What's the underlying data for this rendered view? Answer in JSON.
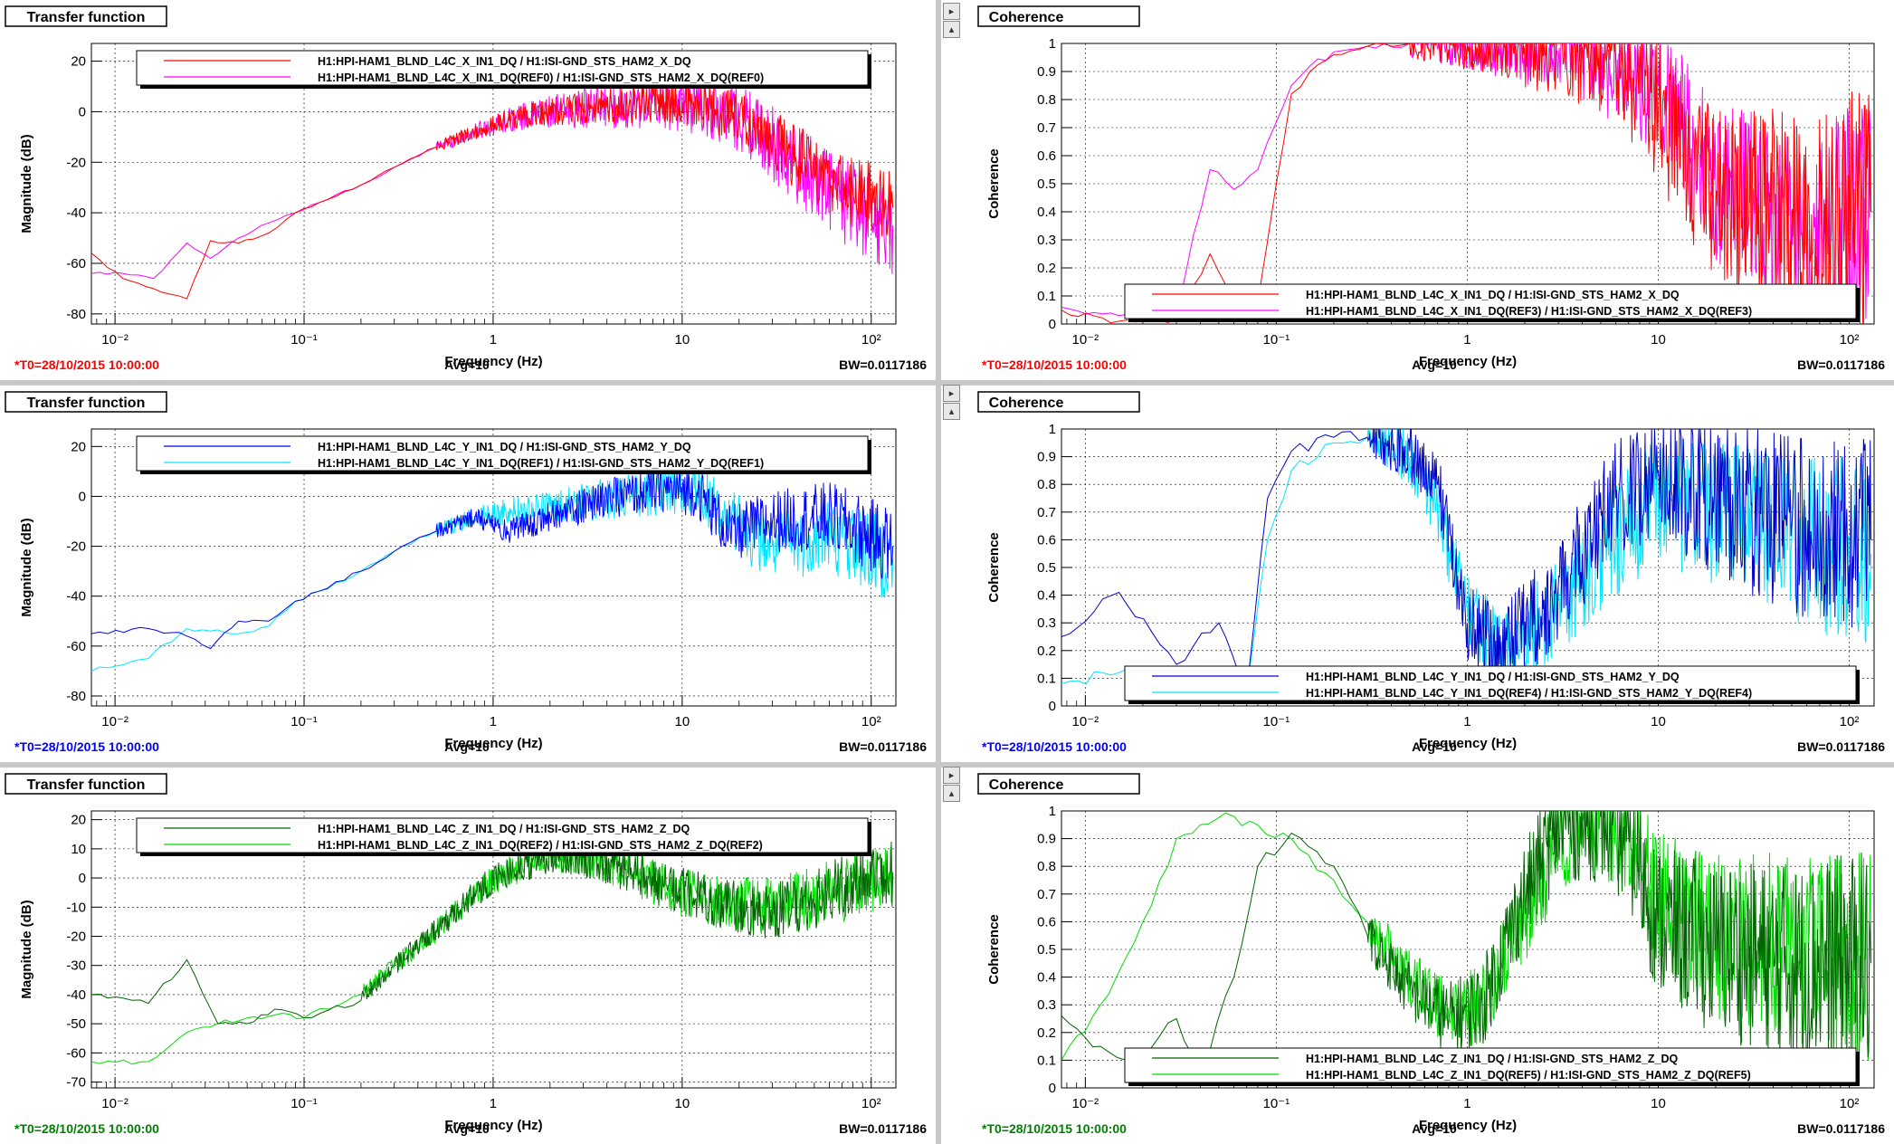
{
  "window": {
    "background": "#ffffff",
    "separator_color": "#c8c8c8"
  },
  "colors": {
    "red": "#ff0000",
    "magenta": "#ff00ff",
    "blue": "#0000ff",
    "darkblue": "#0000cc",
    "cyan": "#00e5ff",
    "darkgreen": "#006400",
    "lightgreen": "#00dd00",
    "redtext": "#ff0000",
    "bluetext": "#0000ff",
    "greentext": "#008000"
  },
  "controls": {
    "right_arrow": "▸",
    "up_arrow": "▴"
  },
  "chart_data": [
    {
      "id": "tf-x",
      "type": "line",
      "title": "Transfer function",
      "xlabel": "Frequency (Hz)",
      "ylabel": "Magnitude (dB)",
      "xscale": "log",
      "xlim": [
        0.0075,
        135
      ],
      "ylim": [
        -84,
        27
      ],
      "yticks": [
        -80,
        -60,
        -40,
        -20,
        0,
        20
      ],
      "xticks": [
        {
          "v": 0.01,
          "l": "10⁻²"
        },
        {
          "v": 0.1,
          "l": "10⁻¹"
        },
        {
          "v": 1,
          "l": "1"
        },
        {
          "v": 10,
          "l": "10"
        },
        {
          "v": 100,
          "l": "10²"
        }
      ],
      "grid": true,
      "legend_position": "top",
      "footer": {
        "left": "*T0=28/10/2015 10:00:00",
        "center": "Avg=10",
        "right": "BW=0.0117186",
        "left_color": "#ff0000"
      },
      "series": [
        {
          "name": "H1:HPI-HAM1_BLND_L4C_X_IN1_DQ(REF0) / H1:ISI-GND_STS_HAM2_X_DQ(REF0)",
          "color": "#ff00ff",
          "x": [
            0.0075,
            0.011,
            0.016,
            0.024,
            0.032,
            0.045,
            0.065,
            0.09,
            0.12,
            0.2,
            0.3,
            0.5,
            0.8,
            1.2,
            2,
            4,
            8,
            12,
            20,
            40,
            80,
            130
          ],
          "y": [
            -64,
            -64,
            -66,
            -52,
            -58,
            -50,
            -44,
            -40,
            -36,
            -29,
            -22,
            -14,
            -8,
            -3,
            0,
            2,
            4,
            3,
            -2,
            -20,
            -38,
            -45
          ],
          "noise_from": 11,
          "noise_amp": [
            2,
            20
          ]
        },
        {
          "name": "H1:HPI-HAM1_BLND_L4C_X_IN1_DQ / H1:ISI-GND_STS_HAM2_X_DQ",
          "color": "#ff0000",
          "x": [
            0.0075,
            0.011,
            0.016,
            0.024,
            0.032,
            0.045,
            0.065,
            0.09,
            0.12,
            0.2,
            0.3,
            0.5,
            0.8,
            1.2,
            2,
            4,
            8,
            12,
            20,
            40,
            80,
            130
          ],
          "y": [
            -56,
            -66,
            -70,
            -74,
            -51,
            -52,
            -48,
            -40,
            -36,
            -29,
            -22,
            -14,
            -8,
            -3,
            0,
            2,
            4,
            3,
            -2,
            -18,
            -32,
            -38
          ],
          "noise_from": 11,
          "noise_amp": [
            2,
            16
          ]
        }
      ]
    },
    {
      "id": "coh-x",
      "type": "line",
      "title": "Coherence",
      "xlabel": "Frequency (Hz)",
      "ylabel": "Coherence",
      "xscale": "log",
      "xlim": [
        0.0075,
        135
      ],
      "ylim": [
        0,
        1
      ],
      "yticks": [
        0,
        0.1,
        0.2,
        0.3,
        0.4,
        0.5,
        0.6,
        0.7,
        0.8,
        0.9,
        1
      ],
      "xticks": [
        {
          "v": 0.01,
          "l": "10⁻²"
        },
        {
          "v": 0.1,
          "l": "10⁻¹"
        },
        {
          "v": 1,
          "l": "1"
        },
        {
          "v": 10,
          "l": "10"
        },
        {
          "v": 100,
          "l": "10²"
        }
      ],
      "grid": true,
      "legend_position": "bottom",
      "footer": {
        "left": "*T0=28/10/2015 10:00:00",
        "center": "Avg=10",
        "right": "BW=0.0117186",
        "left_color": "#ff0000"
      },
      "series": [
        {
          "name": "H1:HPI-HAM1_BLND_L4C_X_IN1_DQ(REF3) / H1:ISI-GND_STS_HAM2_X_DQ(REF3)",
          "color": "#ff00ff",
          "x": [
            0.0075,
            0.015,
            0.03,
            0.045,
            0.06,
            0.08,
            0.1,
            0.12,
            0.15,
            0.2,
            0.3,
            0.5,
            1,
            2,
            4,
            6,
            10,
            20,
            50,
            130
          ],
          "y": [
            0.06,
            0.03,
            0.05,
            0.55,
            0.48,
            0.55,
            0.72,
            0.85,
            0.92,
            0.97,
            0.99,
            1.0,
            1.0,
            0.99,
            0.98,
            0.9,
            0.85,
            0.5,
            0.4,
            0.4
          ],
          "noise_from": 11,
          "noise_amp": [
            0.05,
            0.4
          ]
        },
        {
          "name": "H1:HPI-HAM1_BLND_L4C_X_IN1_DQ / H1:ISI-GND_STS_HAM2_X_DQ",
          "color": "#ff0000",
          "x": [
            0.0075,
            0.015,
            0.03,
            0.045,
            0.06,
            0.08,
            0.1,
            0.12,
            0.15,
            0.2,
            0.3,
            0.5,
            1,
            2,
            4,
            6,
            10,
            20,
            50,
            130
          ],
          "y": [
            0.05,
            0.01,
            0.02,
            0.25,
            0.1,
            0.08,
            0.5,
            0.82,
            0.9,
            0.96,
            0.99,
            1.0,
            1.0,
            0.99,
            0.98,
            0.95,
            0.75,
            0.45,
            0.4,
            0.4
          ],
          "noise_from": 11,
          "noise_amp": [
            0.05,
            0.45
          ]
        }
      ]
    },
    {
      "id": "tf-y",
      "type": "line",
      "title": "Transfer function",
      "xlabel": "Frequency (Hz)",
      "ylabel": "Magnitude (dB)",
      "xscale": "log",
      "xlim": [
        0.0075,
        135
      ],
      "ylim": [
        -84,
        27
      ],
      "yticks": [
        -80,
        -60,
        -40,
        -20,
        0,
        20
      ],
      "xticks": [
        {
          "v": 0.01,
          "l": "10⁻²"
        },
        {
          "v": 0.1,
          "l": "10⁻¹"
        },
        {
          "v": 1,
          "l": "1"
        },
        {
          "v": 10,
          "l": "10"
        },
        {
          "v": 100,
          "l": "10²"
        }
      ],
      "grid": true,
      "legend_position": "top",
      "footer": {
        "left": "*T0=28/10/2015 10:00:00",
        "center": "Avg=10",
        "right": "BW=0.0117186",
        "left_color": "#0000ff"
      },
      "series": [
        {
          "name": "H1:HPI-HAM1_BLND_L4C_Y_IN1_DQ(REF1) / H1:ISI-GND_STS_HAM2_Y_DQ(REF1)",
          "color": "#00e5ff",
          "x": [
            0.0075,
            0.015,
            0.024,
            0.032,
            0.045,
            0.065,
            0.09,
            0.12,
            0.2,
            0.3,
            0.5,
            0.8,
            1.2,
            2,
            4,
            8,
            12,
            18,
            30,
            60,
            130
          ],
          "y": [
            -70,
            -65,
            -53,
            -54,
            -55,
            -52,
            -42,
            -38,
            -30,
            -22,
            -14,
            -8,
            -6,
            -4,
            -1,
            3,
            3,
            -10,
            -20,
            -15,
            -25
          ],
          "noise_from": 10,
          "noise_amp": [
            3,
            18
          ]
        },
        {
          "name": "H1:HPI-HAM1_BLND_L4C_Y_IN1_DQ / H1:ISI-GND_STS_HAM2_Y_DQ",
          "color": "#0000ff",
          "x": [
            0.0075,
            0.015,
            0.024,
            0.032,
            0.045,
            0.065,
            0.09,
            0.12,
            0.2,
            0.3,
            0.5,
            0.8,
            1.2,
            2,
            4,
            8,
            12,
            18,
            30,
            60,
            130
          ],
          "y": [
            -55,
            -53,
            -56,
            -61,
            -50,
            -50,
            -42,
            -38,
            -30,
            -22,
            -14,
            -8,
            -14,
            -8,
            -1,
            3,
            2,
            -15,
            -10,
            -8,
            -20
          ],
          "noise_from": 10,
          "noise_amp": [
            3,
            16
          ]
        }
      ]
    },
    {
      "id": "coh-y",
      "type": "line",
      "title": "Coherence",
      "xlabel": "Frequency (Hz)",
      "ylabel": "Coherence",
      "xscale": "log",
      "xlim": [
        0.0075,
        135
      ],
      "ylim": [
        0,
        1
      ],
      "yticks": [
        0,
        0.1,
        0.2,
        0.3,
        0.4,
        0.5,
        0.6,
        0.7,
        0.8,
        0.9,
        1
      ],
      "xticks": [
        {
          "v": 0.01,
          "l": "10⁻²"
        },
        {
          "v": 0.1,
          "l": "10⁻¹"
        },
        {
          "v": 1,
          "l": "1"
        },
        {
          "v": 10,
          "l": "10"
        },
        {
          "v": 100,
          "l": "10²"
        }
      ],
      "grid": true,
      "legend_position": "bottom",
      "footer": {
        "left": "*T0=28/10/2015 10:00:00",
        "center": "Avg=10",
        "right": "BW=0.0117186",
        "left_color": "#0000ff"
      },
      "series": [
        {
          "name": "H1:HPI-HAM1_BLND_L4C_Y_IN1_DQ(REF4) / H1:ISI-GND_STS_HAM2_Y_DQ(REF4)",
          "color": "#00e5ff",
          "x": [
            0.0075,
            0.015,
            0.03,
            0.05,
            0.07,
            0.09,
            0.12,
            0.2,
            0.3,
            0.5,
            0.7,
            1,
            1.5,
            2.5,
            4,
            6,
            10,
            20,
            50,
            130
          ],
          "y": [
            0.08,
            0.12,
            0.06,
            0.1,
            0.05,
            0.6,
            0.85,
            0.95,
            0.97,
            0.9,
            0.7,
            0.35,
            0.2,
            0.3,
            0.45,
            0.6,
            0.75,
            0.7,
            0.6,
            0.55
          ],
          "noise_from": 8,
          "noise_amp": [
            0.08,
            0.35
          ]
        },
        {
          "name": "H1:HPI-HAM1_BLND_L4C_Y_IN1_DQ / H1:ISI-GND_STS_HAM2_Y_DQ",
          "color": "#0000cc",
          "x": [
            0.0075,
            0.015,
            0.03,
            0.05,
            0.07,
            0.09,
            0.12,
            0.2,
            0.3,
            0.5,
            0.7,
            1,
            1.5,
            2.5,
            4,
            6,
            10,
            20,
            50,
            130
          ],
          "y": [
            0.25,
            0.41,
            0.15,
            0.3,
            0.05,
            0.75,
            0.92,
            0.97,
            0.97,
            0.92,
            0.8,
            0.3,
            0.2,
            0.35,
            0.55,
            0.75,
            0.85,
            0.75,
            0.65,
            0.6
          ],
          "noise_from": 8,
          "noise_amp": [
            0.08,
            0.38
          ]
        }
      ]
    },
    {
      "id": "tf-z",
      "type": "line",
      "title": "Transfer function",
      "xlabel": "Frequency (Hz)",
      "ylabel": "Magnitude (dB)",
      "xscale": "log",
      "xlim": [
        0.0075,
        135
      ],
      "ylim": [
        -72,
        23
      ],
      "yticks": [
        -70,
        -60,
        -50,
        -40,
        -30,
        -20,
        -10,
        0,
        10,
        20
      ],
      "xticks": [
        {
          "v": 0.01,
          "l": "10⁻²"
        },
        {
          "v": 0.1,
          "l": "10⁻¹"
        },
        {
          "v": 1,
          "l": "1"
        },
        {
          "v": 10,
          "l": "10"
        },
        {
          "v": 100,
          "l": "10²"
        }
      ],
      "grid": true,
      "legend_position": "top",
      "footer": {
        "left": "*T0=28/10/2015 10:00:00",
        "center": "Avg=10",
        "right": "BW=0.0117186",
        "left_color": "#008000"
      },
      "series": [
        {
          "name": "H1:HPI-HAM1_BLND_L4C_Z_IN1_DQ(REF2) / H1:ISI-GND_STS_HAM2_Z_DQ(REF2)",
          "color": "#00dd00",
          "x": [
            0.0075,
            0.015,
            0.024,
            0.035,
            0.05,
            0.07,
            0.1,
            0.2,
            0.3,
            0.5,
            0.8,
            1.2,
            2,
            3,
            5,
            8,
            15,
            30,
            60,
            130
          ],
          "y": [
            -63,
            -63,
            -53,
            -50,
            -48,
            -47,
            -48,
            -40,
            -30,
            -18,
            -5,
            2,
            8,
            7,
            3,
            -3,
            -8,
            -10,
            -5,
            0
          ],
          "noise_from": 7,
          "noise_amp": [
            3,
            12
          ]
        },
        {
          "name": "H1:HPI-HAM1_BLND_L4C_Z_IN1_DQ / H1:ISI-GND_STS_HAM2_Z_DQ",
          "color": "#006400",
          "x": [
            0.0075,
            0.015,
            0.024,
            0.035,
            0.05,
            0.07,
            0.1,
            0.2,
            0.3,
            0.5,
            0.8,
            1.2,
            2,
            3,
            5,
            8,
            15,
            30,
            60,
            130
          ],
          "y": [
            -40,
            -43,
            -28,
            -50,
            -50,
            -45,
            -48,
            -42,
            -30,
            -18,
            -5,
            2,
            8,
            7,
            3,
            -3,
            -8,
            -12,
            -5,
            2
          ],
          "noise_from": 7,
          "noise_amp": [
            3,
            12
          ]
        }
      ]
    },
    {
      "id": "coh-z",
      "type": "line",
      "title": "Coherence",
      "xlabel": "Frequency (Hz)",
      "ylabel": "Coherence",
      "xscale": "log",
      "xlim": [
        0.0075,
        135
      ],
      "ylim": [
        0,
        1
      ],
      "yticks": [
        0,
        0.1,
        0.2,
        0.3,
        0.4,
        0.5,
        0.6,
        0.7,
        0.8,
        0.9,
        1
      ],
      "xticks": [
        {
          "v": 0.01,
          "l": "10⁻²"
        },
        {
          "v": 0.1,
          "l": "10⁻¹"
        },
        {
          "v": 1,
          "l": "1"
        },
        {
          "v": 10,
          "l": "10"
        },
        {
          "v": 100,
          "l": "10²"
        }
      ],
      "grid": true,
      "legend_position": "bottom",
      "footer": {
        "left": "*T0=28/10/2015 10:00:00",
        "center": "Avg=10",
        "right": "BW=0.0117186",
        "left_color": "#008000"
      },
      "series": [
        {
          "name": "H1:HPI-HAM1_BLND_L4C_Z_IN1_DQ(REF5) / H1:ISI-GND_STS_HAM2_Z_DQ(REF5)",
          "color": "#00dd00",
          "x": [
            0.0075,
            0.012,
            0.02,
            0.03,
            0.04,
            0.06,
            0.08,
            0.12,
            0.2,
            0.3,
            0.5,
            0.8,
            1.2,
            2,
            3,
            5,
            7,
            10,
            20,
            50,
            130
          ],
          "y": [
            0.1,
            0.3,
            0.6,
            0.9,
            0.95,
            0.98,
            0.95,
            0.9,
            0.75,
            0.6,
            0.4,
            0.25,
            0.3,
            0.6,
            0.9,
            0.98,
            0.95,
            0.7,
            0.55,
            0.5,
            0.45
          ],
          "noise_from": 9,
          "noise_amp": [
            0.08,
            0.4
          ]
        },
        {
          "name": "H1:HPI-HAM1_BLND_L4C_Z_IN1_DQ / H1:ISI-GND_STS_HAM2_Z_DQ",
          "color": "#006400",
          "x": [
            0.0075,
            0.012,
            0.02,
            0.03,
            0.04,
            0.06,
            0.08,
            0.12,
            0.2,
            0.3,
            0.5,
            0.8,
            1.2,
            2,
            3,
            5,
            7,
            10,
            20,
            50,
            130
          ],
          "y": [
            0.26,
            0.15,
            0.1,
            0.25,
            0.05,
            0.4,
            0.8,
            0.92,
            0.8,
            0.55,
            0.35,
            0.25,
            0.3,
            0.7,
            0.95,
            0.98,
            0.9,
            0.6,
            0.5,
            0.45,
            0.45
          ],
          "noise_from": 9,
          "noise_amp": [
            0.08,
            0.42
          ]
        }
      ]
    }
  ]
}
